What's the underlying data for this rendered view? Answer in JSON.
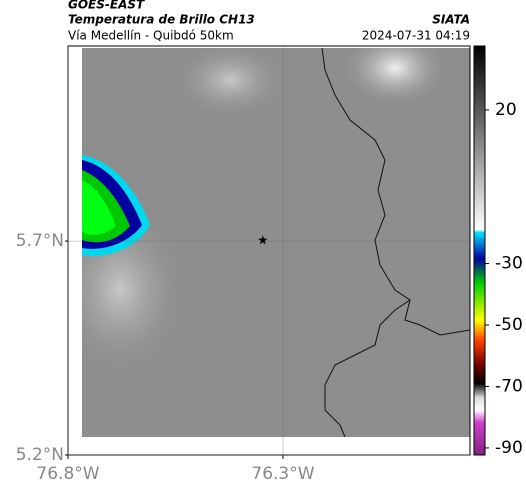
{
  "header": {
    "title": "GOES-EAST",
    "subtitle": "Temperatura de Brillo CH13",
    "source": "SIATA",
    "route": "Vía Medellín - Quibdó 50km",
    "datetime": "2024-07-31 04:19"
  },
  "map": {
    "xlim": [
      -76.8,
      -75.865
    ],
    "ylim": [
      5.2,
      6.156
    ],
    "xticks": [
      {
        "value": -76.8,
        "label": "76.8°W"
      },
      {
        "value": -76.3,
        "label": "76.3°W"
      }
    ],
    "yticks": [
      {
        "value": 5.2,
        "label": "5.2°N"
      },
      {
        "value": 5.7,
        "label": "5.7°N"
      }
    ],
    "marker": {
      "lon": -76.347,
      "lat": 5.702
    },
    "grid": true
  },
  "colorbar": {
    "lim": [
      -92.3,
      40.8
    ],
    "ticks": [
      20,
      -30,
      -50,
      -70,
      -90
    ]
  }
}
